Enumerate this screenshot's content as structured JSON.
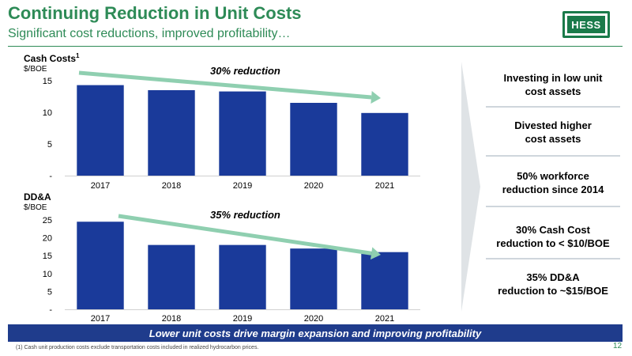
{
  "header": {
    "title": "Continuing Reduction in Unit Costs",
    "subtitle": "Significant cost reductions, improved profitability…",
    "logo_text": "HESS",
    "brand_color": "#2e8b57"
  },
  "chart_data": [
    {
      "type": "bar",
      "title": "Cash Costs",
      "title_superscript": "1",
      "unit_label": "$/BOE",
      "annotation": "30% reduction",
      "categories": [
        "2017",
        "2018",
        "2019",
        "2020",
        "2021"
      ],
      "values": [
        14.3,
        13.5,
        13.3,
        11.5,
        9.9
      ],
      "ylim": [
        0,
        15
      ],
      "yticks": [
        {
          "value": 0,
          "label": "-"
        },
        {
          "value": 5,
          "label": "5"
        },
        {
          "value": 10,
          "label": "10"
        },
        {
          "value": 15,
          "label": "15"
        }
      ],
      "bar_color": "#1a3a9a",
      "trend_color": "#8fcfb0",
      "grid": false
    },
    {
      "type": "bar",
      "title": "DD&A",
      "unit_label": "$/BOE",
      "annotation": "35% reduction",
      "categories": [
        "2017",
        "2018",
        "2019",
        "2020",
        "2021"
      ],
      "values": [
        24.5,
        18.0,
        18.0,
        17.0,
        16.0
      ],
      "ylim": [
        0,
        25
      ],
      "yticks": [
        {
          "value": 0,
          "label": "-"
        },
        {
          "value": 5,
          "label": "5"
        },
        {
          "value": 10,
          "label": "10"
        },
        {
          "value": 15,
          "label": "15"
        },
        {
          "value": 20,
          "label": "20"
        },
        {
          "value": 25,
          "label": "25"
        }
      ],
      "bar_color": "#1a3a9a",
      "trend_color": "#8fcfb0",
      "grid": false
    }
  ],
  "callouts": [
    {
      "line1": "Investing in low unit",
      "line2": "cost assets"
    },
    {
      "line1": "Divested higher",
      "line2": "cost assets"
    },
    {
      "line1": "50% workforce",
      "line2": "reduction since 2014"
    },
    {
      "line1": "30% Cash Cost",
      "line2": "reduction to < $10/BOE"
    },
    {
      "line1": "35% DD&A",
      "line2": "reduction to ~$15/BOE"
    }
  ],
  "banner": "Lower unit costs drive margin expansion and improving profitability",
  "footnote": "(1) Cash unit production costs exclude transportation costs included in realized hydrocarbon prices.",
  "page_number": "12"
}
